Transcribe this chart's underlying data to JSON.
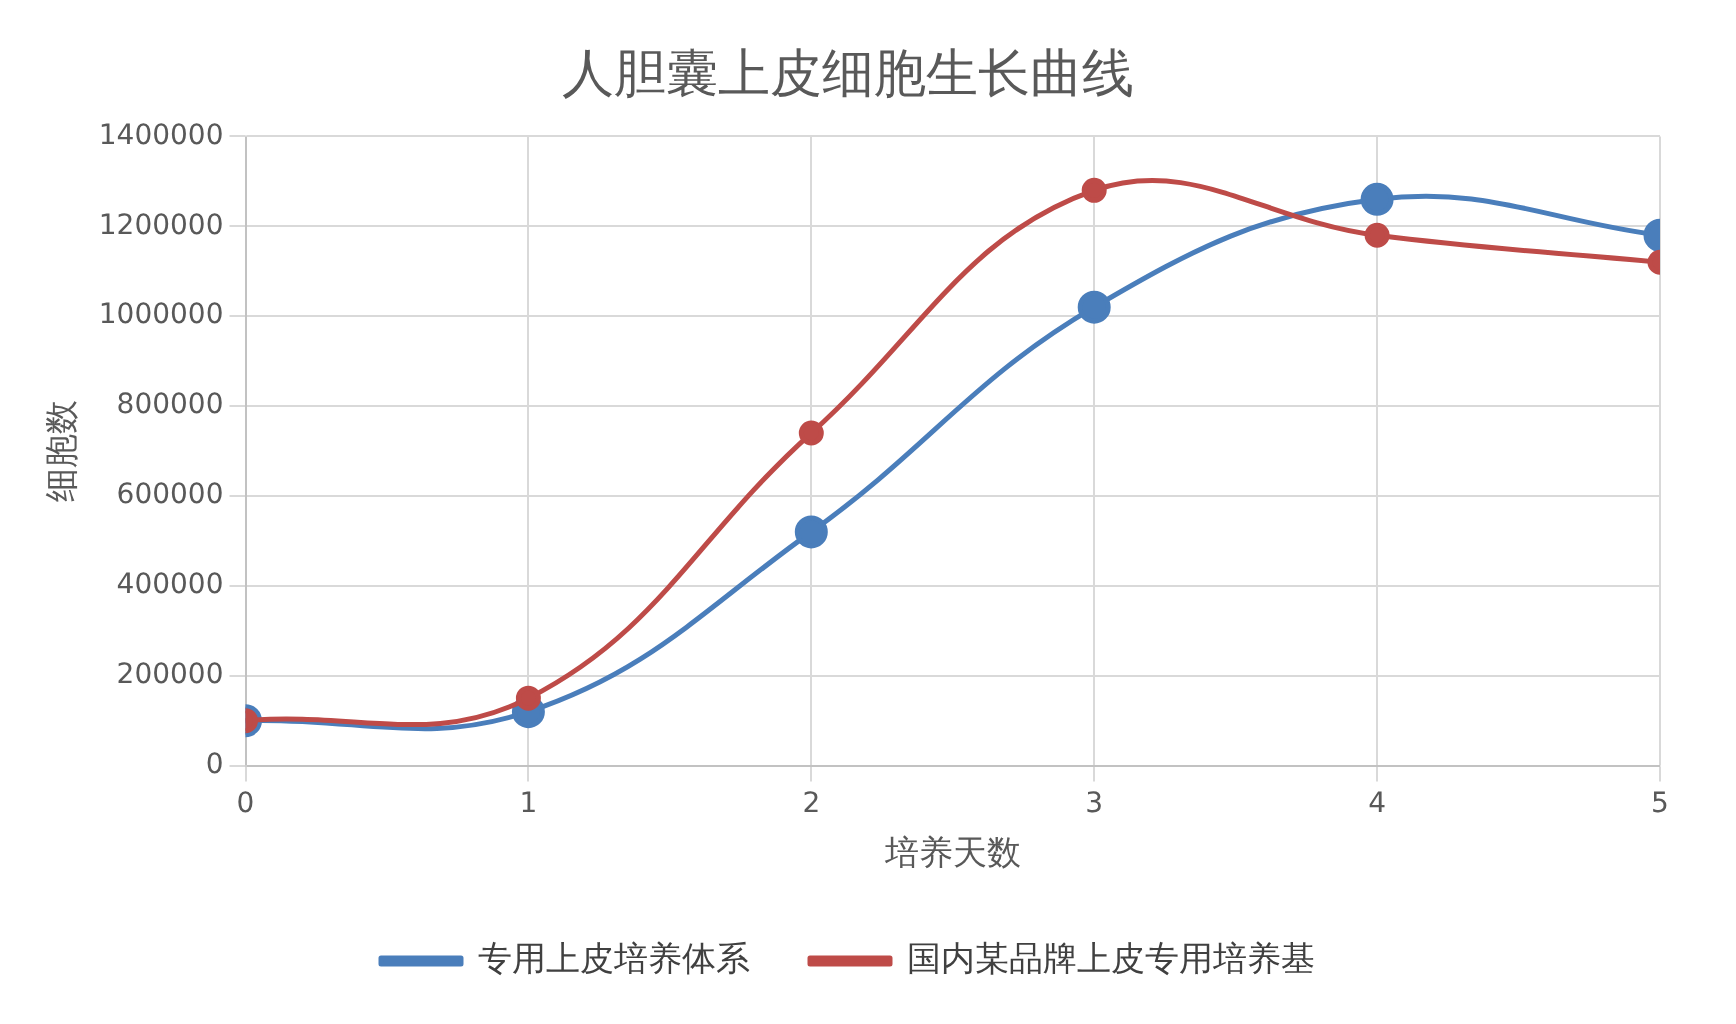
{
  "chart_data": {
    "type": "line",
    "title": "人胆囊上皮细胞生长曲线",
    "xlabel": "培养天数",
    "ylabel": "细胞数",
    "x": [
      0,
      1,
      2,
      3,
      4,
      5
    ],
    "series": [
      {
        "name": "专用上皮培养体系",
        "color": "#4a7ebb",
        "values": [
          100000,
          120000,
          520000,
          1020000,
          1260000,
          1180000
        ]
      },
      {
        "name": "国内某品牌上皮专用培养基",
        "color": "#be4b48",
        "values": [
          100000,
          150000,
          740000,
          1280000,
          1180000,
          1120000
        ]
      }
    ],
    "xlim": [
      0,
      5
    ],
    "xticks": [
      0,
      1,
      2,
      3,
      4,
      5
    ],
    "ylim": [
      0,
      1400000
    ],
    "yticks": [
      0,
      200000,
      400000,
      600000,
      800000,
      1000000,
      1200000,
      1400000
    ],
    "grid": true,
    "legend": "bottom",
    "marker": "circle",
    "line_style": "solid"
  }
}
